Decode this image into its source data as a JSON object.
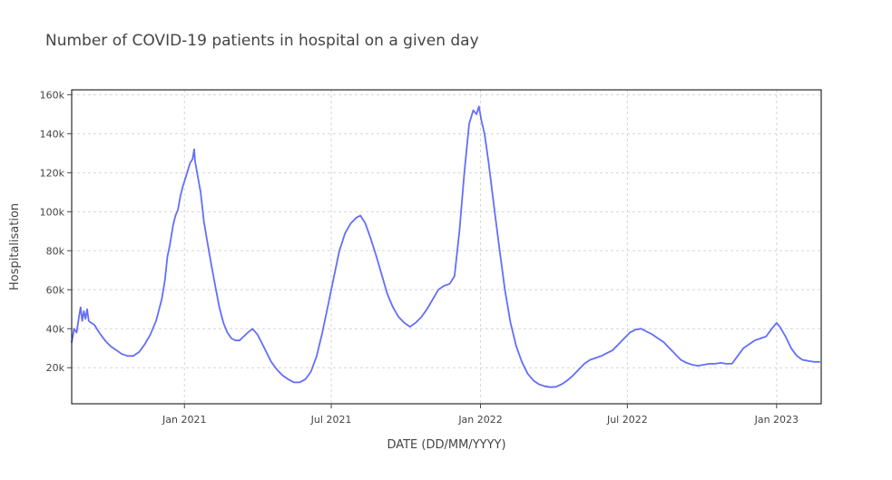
{
  "chart_data": {
    "type": "line",
    "title": "Number of COVID-19 patients in hospital on a given day",
    "xlabel": "DATE (DD/MM/YYYY)",
    "ylabel": "Hospitalisation",
    "xlim": [
      "2020-08-15",
      "2023-02-25"
    ],
    "ylim": [
      1500,
      162500
    ],
    "x_ticks": [
      {
        "date": "2021-01-01",
        "label": "Jan 2021"
      },
      {
        "date": "2021-07-01",
        "label": "Jul 2021"
      },
      {
        "date": "2022-01-01",
        "label": "Jan 2022"
      },
      {
        "date": "2022-07-01",
        "label": "Jul 2022"
      },
      {
        "date": "2023-01-01",
        "label": "Jan 2023"
      }
    ],
    "y_ticks": [
      {
        "value": 20000,
        "label": "20k"
      },
      {
        "value": 40000,
        "label": "40k"
      },
      {
        "value": 60000,
        "label": "60k"
      },
      {
        "value": 80000,
        "label": "80k"
      },
      {
        "value": 100000,
        "label": "100k"
      },
      {
        "value": 120000,
        "label": "120k"
      },
      {
        "value": 140000,
        "label": "140k"
      },
      {
        "value": 160000,
        "label": "160k"
      }
    ],
    "grid": true,
    "legend": "none",
    "colors": {
      "line": "#636efa",
      "grid": "#d6d6d6",
      "frame": "#000000"
    },
    "series": [
      {
        "values": [
          [
            "2020-08-15",
            33000
          ],
          [
            "2020-08-18",
            40000
          ],
          [
            "2020-08-21",
            38000
          ],
          [
            "2020-08-24",
            46000
          ],
          [
            "2020-08-26",
            51000
          ],
          [
            "2020-08-28",
            44000
          ],
          [
            "2020-08-30",
            49000
          ],
          [
            "2020-09-01",
            45000
          ],
          [
            "2020-09-03",
            50000
          ],
          [
            "2020-09-05",
            44000
          ],
          [
            "2020-09-08",
            43000
          ],
          [
            "2020-09-12",
            42000
          ],
          [
            "2020-09-18",
            38000
          ],
          [
            "2020-09-25",
            34000
          ],
          [
            "2020-10-02",
            31000
          ],
          [
            "2020-10-09",
            29000
          ],
          [
            "2020-10-16",
            27000
          ],
          [
            "2020-10-23",
            26000
          ],
          [
            "2020-10-30",
            26000
          ],
          [
            "2020-11-06",
            28000
          ],
          [
            "2020-11-13",
            32000
          ],
          [
            "2020-11-20",
            37000
          ],
          [
            "2020-11-27",
            44000
          ],
          [
            "2020-12-04",
            55000
          ],
          [
            "2020-12-08",
            65000
          ],
          [
            "2020-12-11",
            77000
          ],
          [
            "2020-12-14",
            83000
          ],
          [
            "2020-12-18",
            93000
          ],
          [
            "2020-12-21",
            98000
          ],
          [
            "2020-12-24",
            101000
          ],
          [
            "2020-12-27",
            108000
          ],
          [
            "2020-12-30",
            113000
          ],
          [
            "2021-01-02",
            117000
          ],
          [
            "2021-01-05",
            121000
          ],
          [
            "2021-01-08",
            125000
          ],
          [
            "2021-01-11",
            127000
          ],
          [
            "2021-01-13",
            132000
          ],
          [
            "2021-01-14",
            126000
          ],
          [
            "2021-01-17",
            119000
          ],
          [
            "2021-01-21",
            110000
          ],
          [
            "2021-01-25",
            95000
          ],
          [
            "2021-01-29",
            85000
          ],
          [
            "2021-02-03",
            73000
          ],
          [
            "2021-02-08",
            62000
          ],
          [
            "2021-02-13",
            51000
          ],
          [
            "2021-02-18",
            43000
          ],
          [
            "2021-02-23",
            38000
          ],
          [
            "2021-02-28",
            35000
          ],
          [
            "2021-03-05",
            34000
          ],
          [
            "2021-03-10",
            34000
          ],
          [
            "2021-03-15",
            36000
          ],
          [
            "2021-03-20",
            38000
          ],
          [
            "2021-03-26",
            40000
          ],
          [
            "2021-04-01",
            37000
          ],
          [
            "2021-04-06",
            33000
          ],
          [
            "2021-04-12",
            28000
          ],
          [
            "2021-04-18",
            23000
          ],
          [
            "2021-04-25",
            19000
          ],
          [
            "2021-05-02",
            16000
          ],
          [
            "2021-05-09",
            14000
          ],
          [
            "2021-05-16",
            12500
          ],
          [
            "2021-05-23",
            12500
          ],
          [
            "2021-05-30",
            14000
          ],
          [
            "2021-06-06",
            18000
          ],
          [
            "2021-06-13",
            26000
          ],
          [
            "2021-06-20",
            38000
          ],
          [
            "2021-06-27",
            52000
          ],
          [
            "2021-07-04",
            66000
          ],
          [
            "2021-07-11",
            80000
          ],
          [
            "2021-07-18",
            89000
          ],
          [
            "2021-07-25",
            94000
          ],
          [
            "2021-08-01",
            97000
          ],
          [
            "2021-08-06",
            98000
          ],
          [
            "2021-08-12",
            94000
          ],
          [
            "2021-08-18",
            87000
          ],
          [
            "2021-08-25",
            78000
          ],
          [
            "2021-09-01",
            68000
          ],
          [
            "2021-09-08",
            58000
          ],
          [
            "2021-09-15",
            51000
          ],
          [
            "2021-09-22",
            46000
          ],
          [
            "2021-09-29",
            43000
          ],
          [
            "2021-10-06",
            41000
          ],
          [
            "2021-10-13",
            43000
          ],
          [
            "2021-10-20",
            46000
          ],
          [
            "2021-10-27",
            50000
          ],
          [
            "2021-11-03",
            55000
          ],
          [
            "2021-11-10",
            60000
          ],
          [
            "2021-11-17",
            62000
          ],
          [
            "2021-11-24",
            63000
          ],
          [
            "2021-11-30",
            67000
          ],
          [
            "2021-12-06",
            90000
          ],
          [
            "2021-12-12",
            120000
          ],
          [
            "2021-12-18",
            145000
          ],
          [
            "2021-12-23",
            152000
          ],
          [
            "2021-12-27",
            150000
          ],
          [
            "2021-12-30",
            154000
          ],
          [
            "2022-01-02",
            147000
          ],
          [
            "2022-01-06",
            140000
          ],
          [
            "2022-01-11",
            125000
          ],
          [
            "2022-01-17",
            105000
          ],
          [
            "2022-01-24",
            82000
          ],
          [
            "2022-01-31",
            60000
          ],
          [
            "2022-02-07",
            43000
          ],
          [
            "2022-02-14",
            31000
          ],
          [
            "2022-02-21",
            23000
          ],
          [
            "2022-02-28",
            17000
          ],
          [
            "2022-03-07",
            13500
          ],
          [
            "2022-03-14",
            11500
          ],
          [
            "2022-03-21",
            10500
          ],
          [
            "2022-03-28",
            10000
          ],
          [
            "2022-04-04",
            10200
          ],
          [
            "2022-04-11",
            11500
          ],
          [
            "2022-04-18",
            13500
          ],
          [
            "2022-04-25",
            16000
          ],
          [
            "2022-05-02",
            19000
          ],
          [
            "2022-05-09",
            22000
          ],
          [
            "2022-05-16",
            24000
          ],
          [
            "2022-05-23",
            25000
          ],
          [
            "2022-05-30",
            26000
          ],
          [
            "2022-06-06",
            27500
          ],
          [
            "2022-06-13",
            29000
          ],
          [
            "2022-06-20",
            32000
          ],
          [
            "2022-06-27",
            35000
          ],
          [
            "2022-07-04",
            38000
          ],
          [
            "2022-07-11",
            39500
          ],
          [
            "2022-07-18",
            40000
          ],
          [
            "2022-07-25",
            38500
          ],
          [
            "2022-08-01",
            37000
          ],
          [
            "2022-08-08",
            35000
          ],
          [
            "2022-08-15",
            33000
          ],
          [
            "2022-08-22",
            30000
          ],
          [
            "2022-08-29",
            27000
          ],
          [
            "2022-09-05",
            24000
          ],
          [
            "2022-09-12",
            22500
          ],
          [
            "2022-09-19",
            21500
          ],
          [
            "2022-09-26",
            21000
          ],
          [
            "2022-10-03",
            21500
          ],
          [
            "2022-10-10",
            22000
          ],
          [
            "2022-10-17",
            22000
          ],
          [
            "2022-10-24",
            22500
          ],
          [
            "2022-10-31",
            22000
          ],
          [
            "2022-11-07",
            22000
          ],
          [
            "2022-11-14",
            26000
          ],
          [
            "2022-11-21",
            30000
          ],
          [
            "2022-11-28",
            32000
          ],
          [
            "2022-12-05",
            34000
          ],
          [
            "2022-12-12",
            35000
          ],
          [
            "2022-12-19",
            36000
          ],
          [
            "2022-12-26",
            40000
          ],
          [
            "2023-01-01",
            43000
          ],
          [
            "2023-01-05",
            41000
          ],
          [
            "2023-01-12",
            36000
          ],
          [
            "2023-01-19",
            30000
          ],
          [
            "2023-01-26",
            26000
          ],
          [
            "2023-02-02",
            24000
          ],
          [
            "2023-02-09",
            23500
          ],
          [
            "2023-02-16",
            23000
          ],
          [
            "2023-02-23",
            23000
          ]
        ]
      }
    ]
  }
}
